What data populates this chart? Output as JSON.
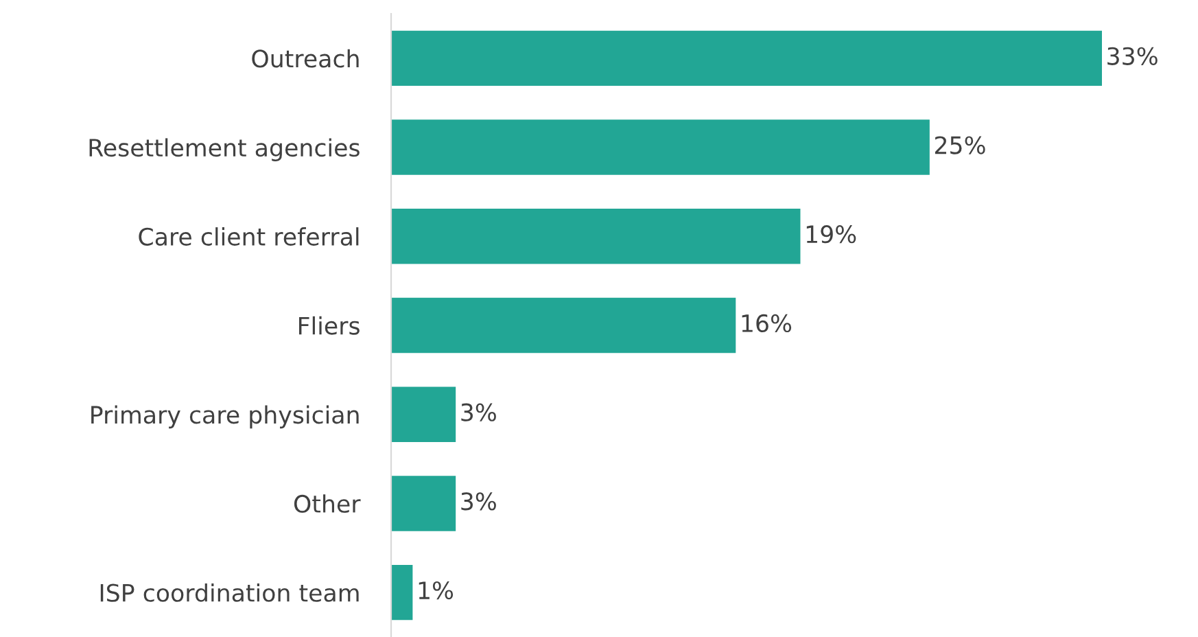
{
  "chart_data": {
    "type": "bar",
    "orientation": "horizontal",
    "categories": [
      "Outreach",
      "Resettlement agencies",
      "Care client referral",
      "Fliers",
      "Primary care physician",
      "Other",
      "ISP coordination team"
    ],
    "values": [
      33,
      25,
      19,
      16,
      3,
      3,
      1
    ],
    "value_labels": [
      "33%",
      "25%",
      "19%",
      "16%",
      "3%",
      "3%",
      "1%"
    ],
    "color": "#22a695",
    "grid": false,
    "legend": false
  }
}
